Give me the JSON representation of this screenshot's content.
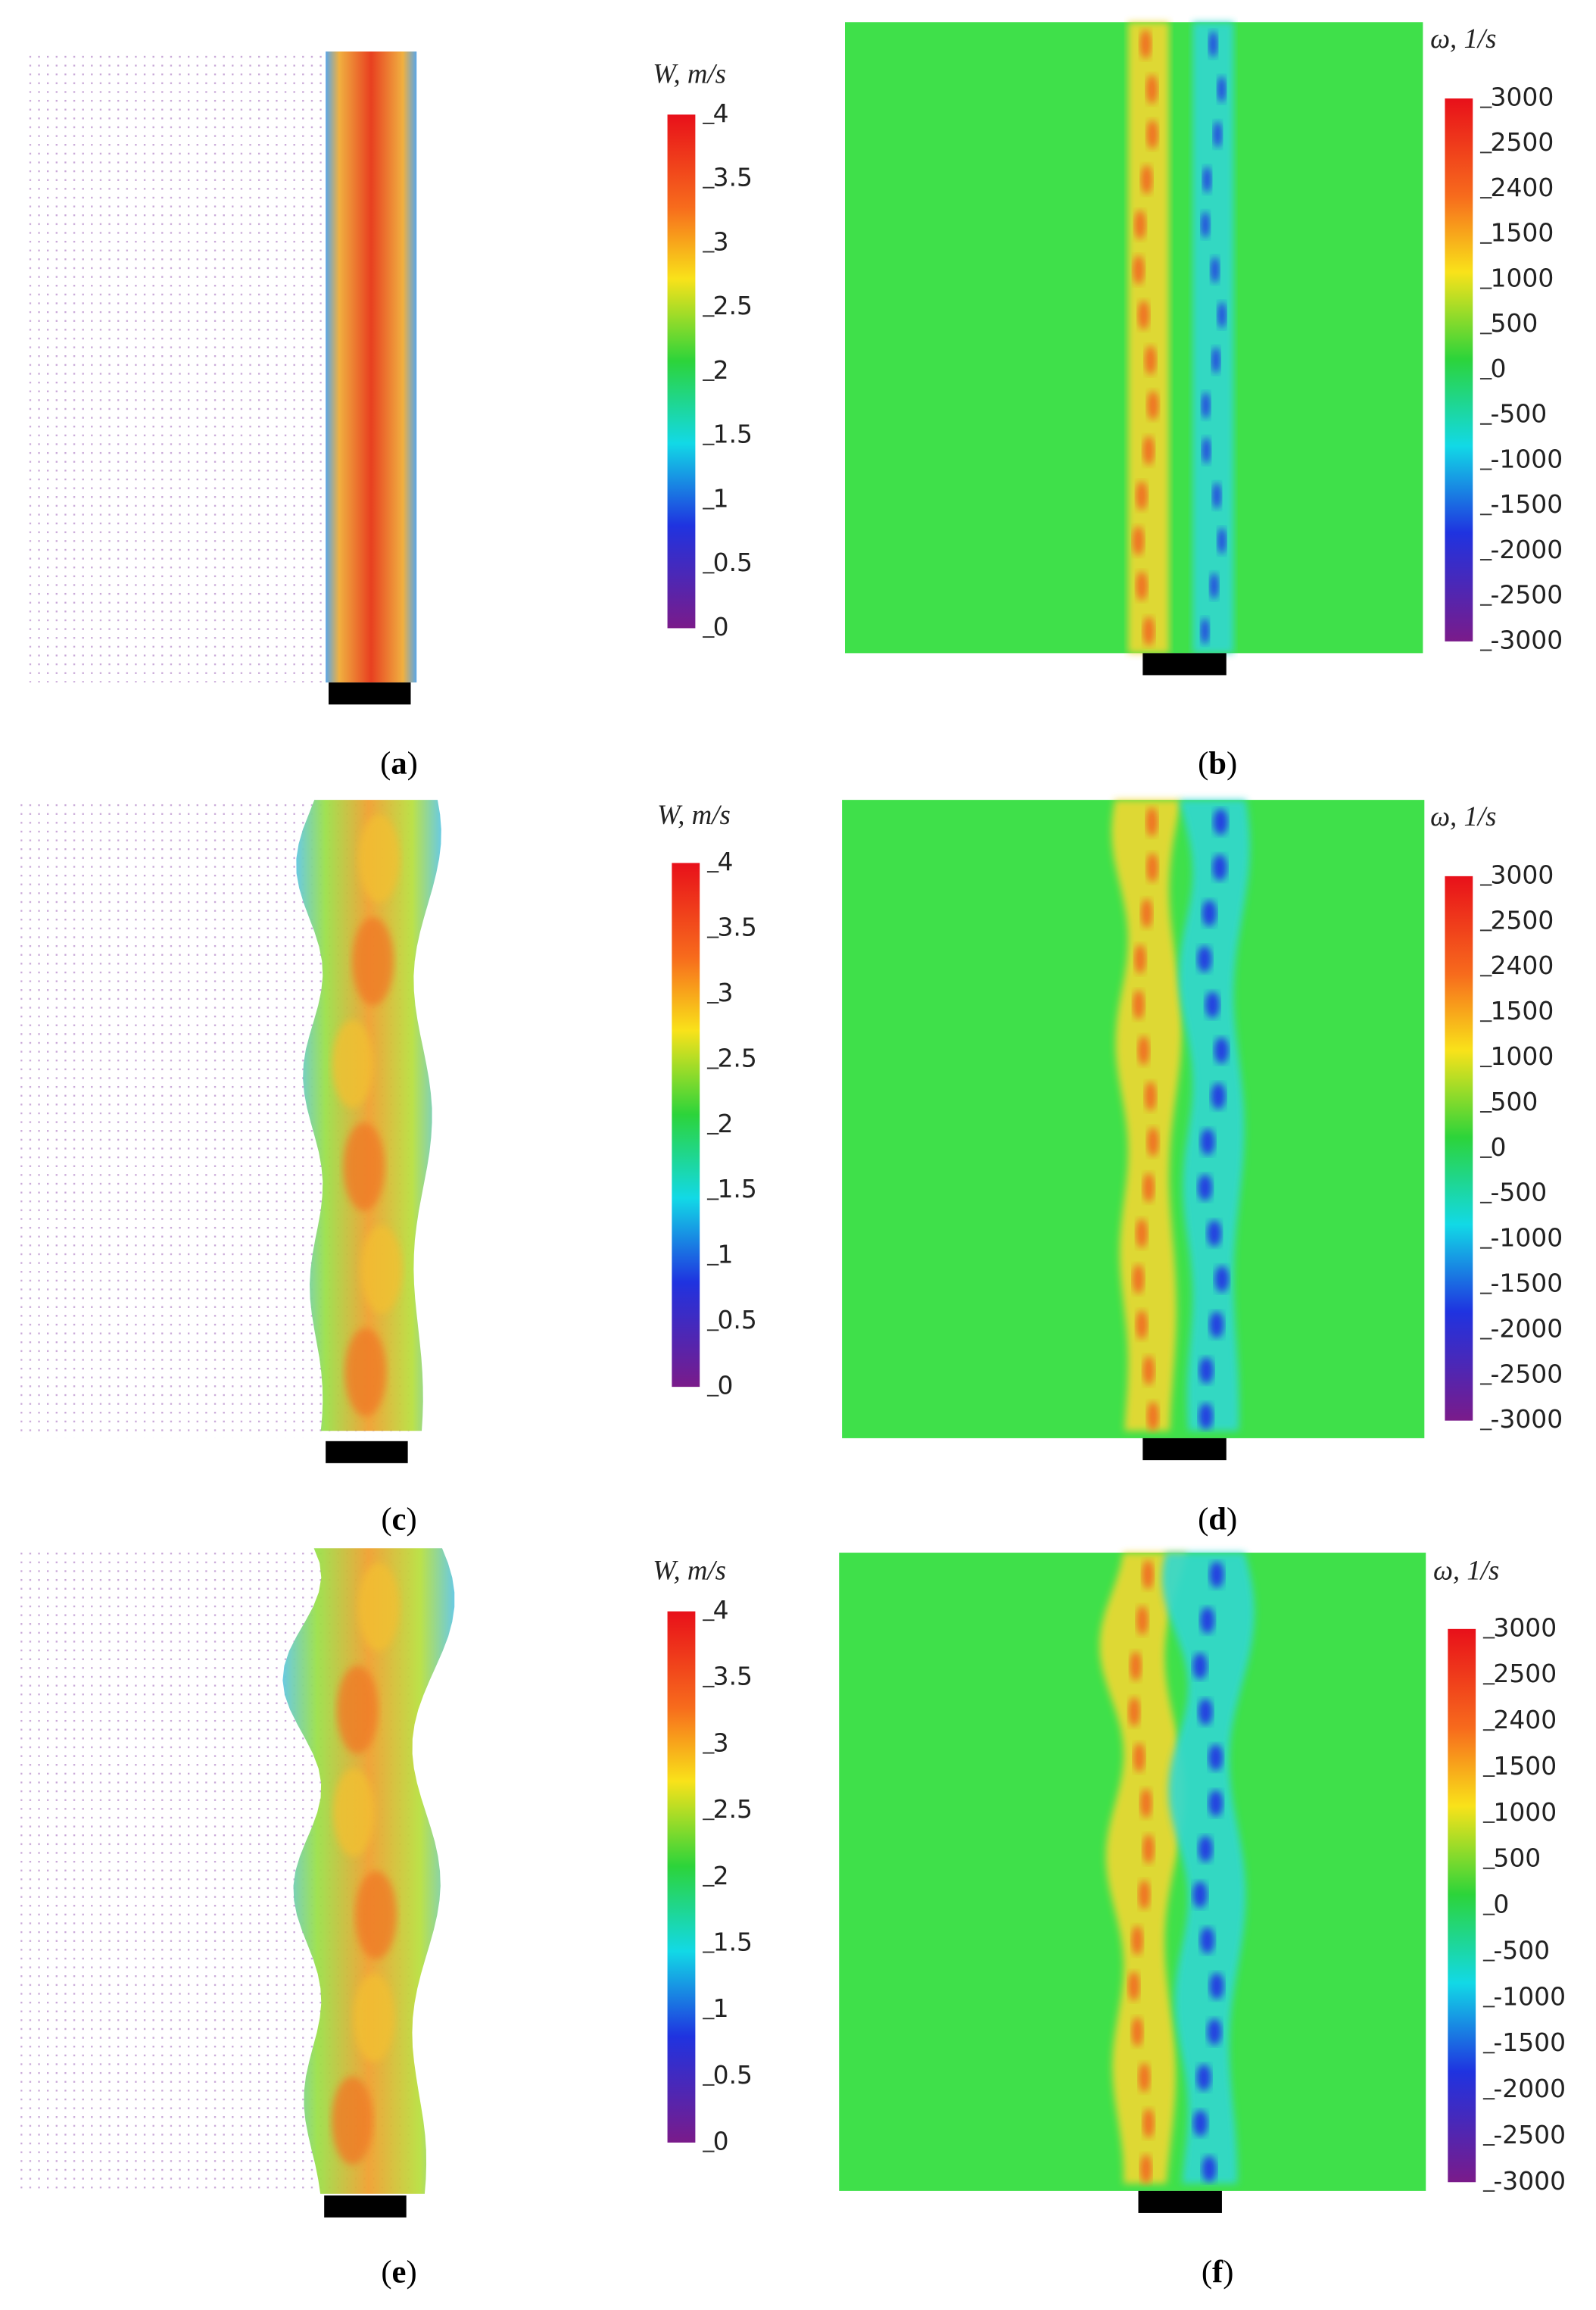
{
  "panels": [
    {
      "caption": {
        "open": "(",
        "letter": "a",
        "close": ")"
      },
      "colorbar": {
        "title": "W, m/s",
        "ticks": [
          "4",
          "3.5",
          "3",
          "2.5",
          "2",
          "1.5",
          "1",
          "0.5",
          "0"
        ]
      }
    },
    {
      "caption": {
        "open": "(",
        "letter": "b",
        "close": ")"
      },
      "colorbar": {
        "title": "ω, 1/s",
        "ticks": [
          "3000",
          "2500",
          "2400",
          "1500",
          "1000",
          "500",
          "0",
          "-500",
          "-1000",
          "-1500",
          "-2000",
          "-2500",
          "-3000"
        ]
      }
    },
    {
      "caption": {
        "open": "(",
        "letter": "c",
        "close": ")"
      },
      "colorbar": {
        "title": "W, m/s",
        "ticks": [
          "4",
          "3.5",
          "3",
          "2.5",
          "2",
          "1.5",
          "1",
          "0.5",
          "0"
        ]
      }
    },
    {
      "caption": {
        "open": "(",
        "letter": "d",
        "close": ")"
      },
      "colorbar": {
        "title": "ω, 1/s",
        "ticks": [
          "3000",
          "2500",
          "2400",
          "1500",
          "1000",
          "500",
          "0",
          "-500",
          "-1000",
          "-1500",
          "-2000",
          "-2500",
          "-3000"
        ]
      }
    },
    {
      "caption": {
        "open": "(",
        "letter": "e",
        "close": ")"
      },
      "colorbar": {
        "title": "W, m/s",
        "ticks": [
          "4",
          "3.5",
          "3",
          "2.5",
          "2",
          "1.5",
          "1",
          "0.5",
          "0"
        ]
      }
    },
    {
      "caption": {
        "open": "(",
        "letter": "f",
        "close": ")"
      },
      "colorbar": {
        "title": "ω, 1/s",
        "ticks": [
          "3000",
          "2500",
          "2400",
          "1500",
          "1000",
          "500",
          "0",
          "-500",
          "-1000",
          "-1500",
          "-2000",
          "-2500",
          "-3000"
        ]
      }
    }
  ]
}
